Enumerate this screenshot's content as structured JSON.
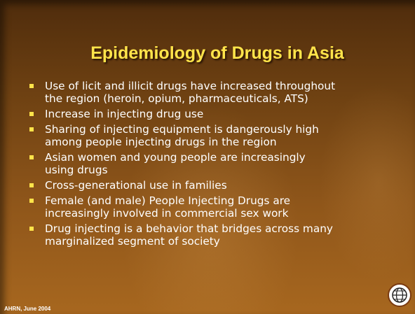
{
  "title": "Epidemiology of Drugs in Asia",
  "bullets": [
    [
      "Use of licit and illicit drugs have increased throughout",
      "the region (heroin, opium, pharmaceuticals, ATS)"
    ],
    [
      "Increase in injecting drug use"
    ],
    [
      "Sharing of injecting equipment is dangerously high",
      "among people injecting drugs in the region"
    ],
    [
      "Asian women and young people are increasingly",
      "using drugs"
    ],
    [
      "Cross-generational use in families"
    ],
    [
      "Female (and male) People Injecting Drugs are",
      "increasingly involved in commercial sex work"
    ],
    [
      "Drug injecting is a behavior that bridges across many",
      "marginalized segment of society"
    ]
  ],
  "footer": "AHRN, June 2004"
}
